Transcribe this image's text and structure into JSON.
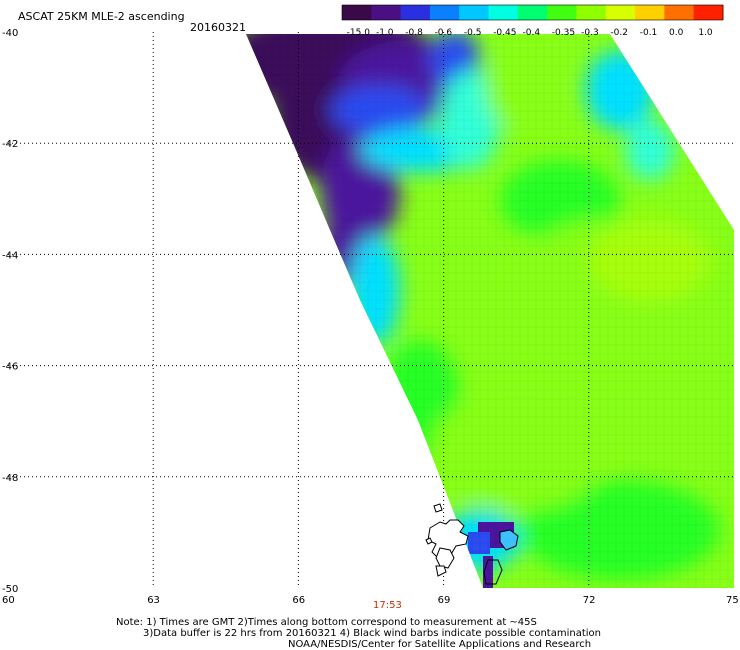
{
  "header": {
    "title": "ASCAT 25KM MLE-2 ascending",
    "date": "20160321"
  },
  "colorbar": {
    "tick_labels": [
      "-15.0",
      "-1.0",
      "-0.8",
      "-0.6",
      "-0.5",
      "-0.45",
      "-0.4",
      "-0.35",
      "-0.3",
      "-0.2",
      "-0.1",
      "0.0",
      "1.0"
    ],
    "colors": [
      "#3a0a48",
      "#4a0f82",
      "#2a30e0",
      "#0a80ff",
      "#00c8ff",
      "#00ffe0",
      "#00ff70",
      "#40ff10",
      "#90ff00",
      "#d8ff00",
      "#ffd000",
      "#ff7000",
      "#ff2000"
    ]
  },
  "map": {
    "x_ticks": [
      "60",
      "63",
      "66",
      "69",
      "72",
      "75"
    ],
    "y_ticks": [
      "-40",
      "-42",
      "-44",
      "-46",
      "-48",
      "-50"
    ],
    "time_label": "17:53",
    "field_colors": {
      "deep": "#3a0f5a",
      "purple": "#4c159e",
      "blue": "#2a4cf0",
      "cyan": "#00e0ff",
      "aqua": "#30ffd8",
      "green": "#28ff28",
      "lime": "#88ff18",
      "yellowgreen": "#a8ff10"
    }
  },
  "footer": {
    "line1": "Note: 1) Times are GMT 2)Times along bottom correspond to measurement at ~45S",
    "line2": "3)Data buffer is 22 hrs from 20160321 4) Black wind barbs indicate possible contamination",
    "line3": "NOAA/NESDIS/Center for Satellite Applications and Research"
  }
}
